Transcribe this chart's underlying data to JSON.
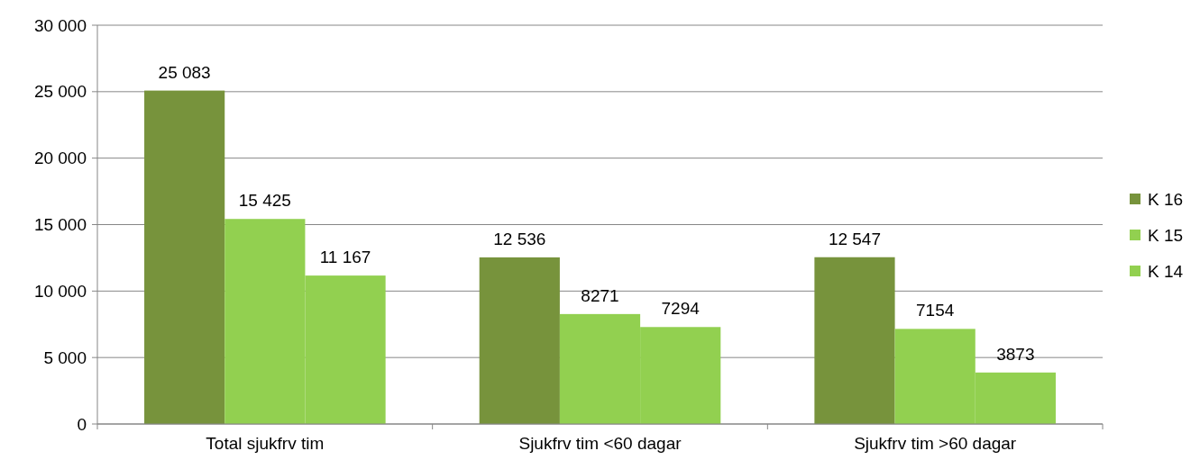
{
  "chart_data": {
    "type": "bar",
    "categories": [
      "Total sjukfrv tim",
      "Sjukfrv tim <60 dagar",
      "Sjukfrv tim >60 dagar"
    ],
    "series": [
      {
        "name": "K 16",
        "color": "#77933c",
        "values": [
          25083,
          12536,
          12547
        ],
        "value_labels": [
          "25 083",
          "12 536",
          "12 547"
        ]
      },
      {
        "name": "K 15",
        "color": "#92d050",
        "values": [
          15425,
          8271,
          7154
        ],
        "value_labels": [
          "15 425",
          "8271",
          "7154"
        ]
      },
      {
        "name": "K 14",
        "color": "#92d050",
        "values": [
          11167,
          7294,
          3873
        ],
        "value_labels": [
          "11 167",
          "7294",
          "3873"
        ]
      }
    ],
    "ylim": [
      0,
      30000
    ],
    "yticks": [
      {
        "value": 0,
        "label": "0"
      },
      {
        "value": 5000,
        "label": "5 000"
      },
      {
        "value": 10000,
        "label": "10 000"
      },
      {
        "value": 15000,
        "label": "15 000"
      },
      {
        "value": 20000,
        "label": "20 000"
      },
      {
        "value": 25000,
        "label": "25 000"
      },
      {
        "value": 30000,
        "label": "30 000"
      }
    ],
    "grid": "y",
    "legend": "right"
  }
}
